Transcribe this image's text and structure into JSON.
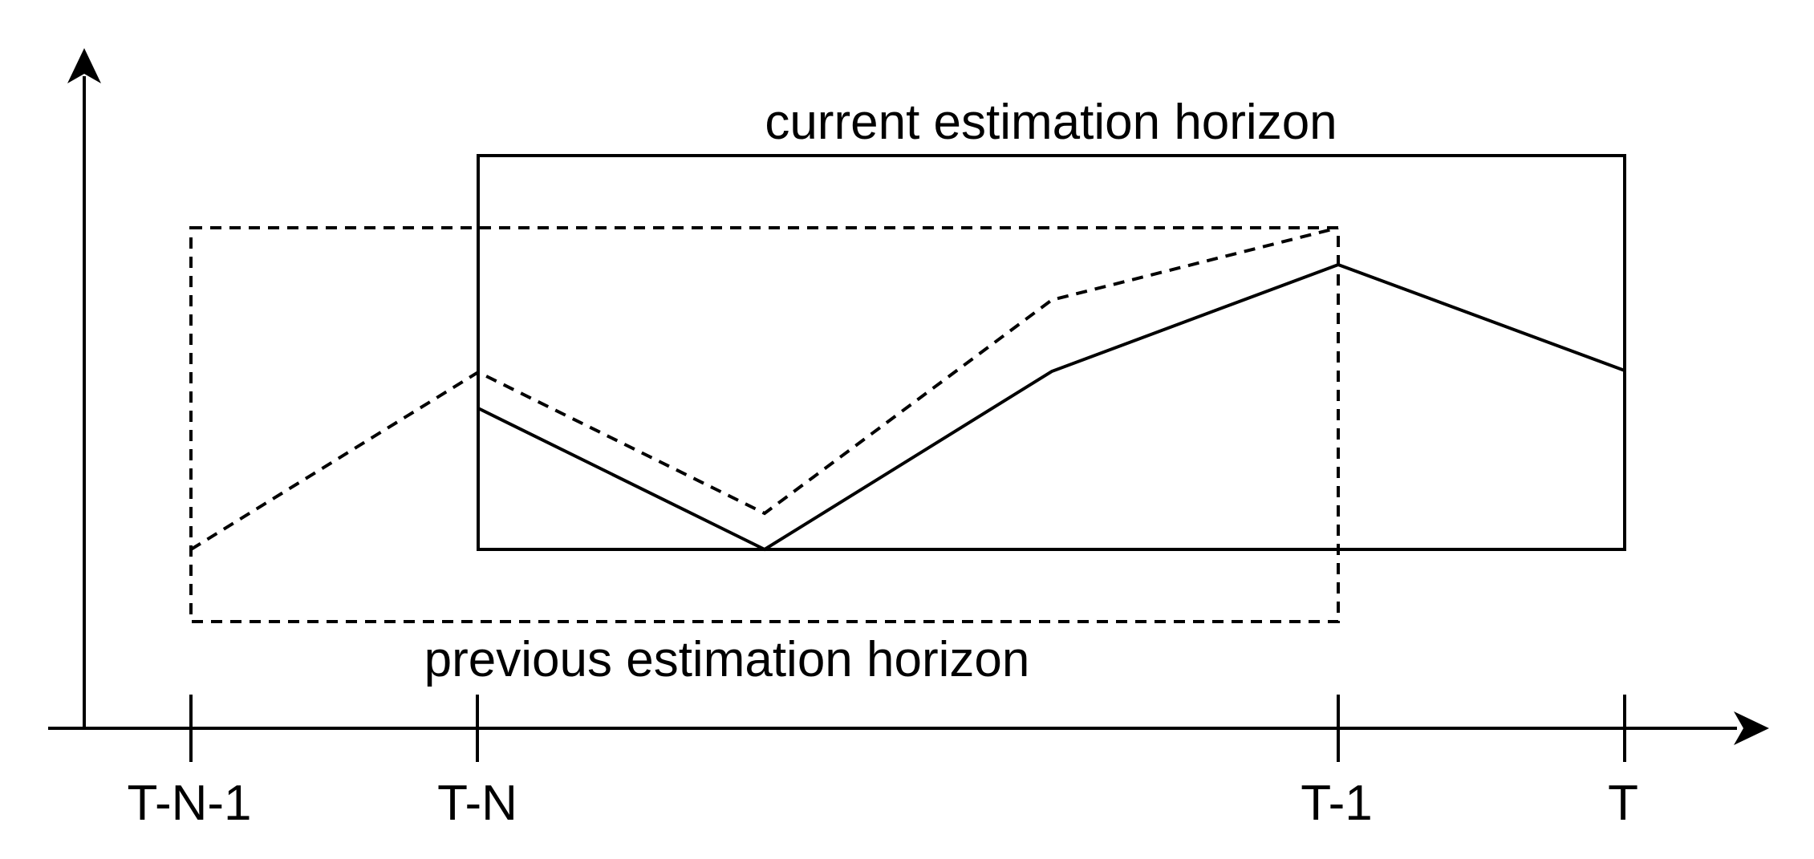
{
  "labels": {
    "current_horizon": "current estimation horizon",
    "previous_horizon": "previous estimation horizon"
  },
  "ticks": [
    {
      "id": "t-n-1",
      "label": "T-N-1"
    },
    {
      "id": "t-n",
      "label": "T-N"
    },
    {
      "id": "t-1",
      "label": "T-1"
    },
    {
      "id": "t",
      "label": "T"
    }
  ],
  "colors": {
    "stroke": "#000000",
    "background": "#ffffff"
  }
}
